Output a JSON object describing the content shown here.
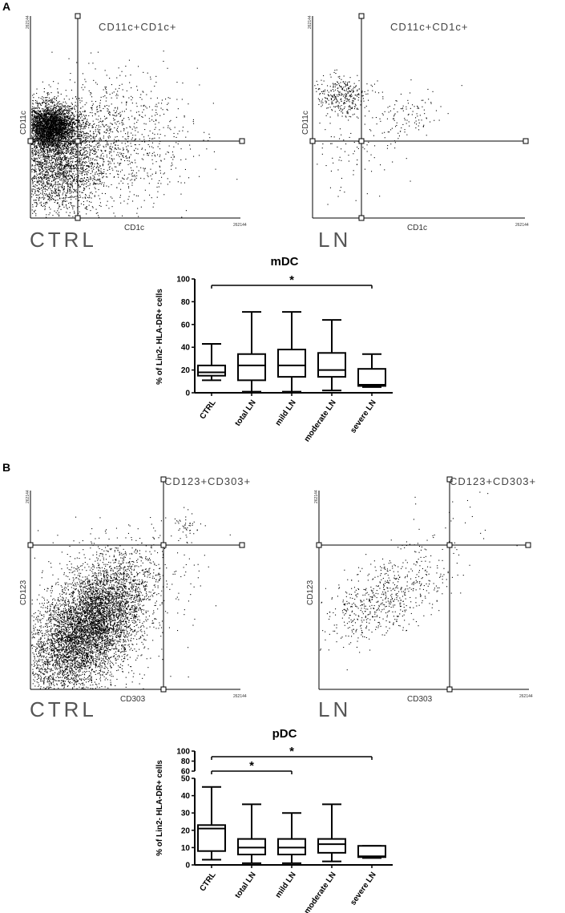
{
  "panels": {
    "A": {
      "letter": "A",
      "ctrl_plot": {
        "group_label": "CTRL",
        "gate_label": "CD11c+CD1c+",
        "y_axis": "CD11c",
        "x_axis": "CD1c",
        "max_tick": "262144"
      },
      "ln_plot": {
        "group_label": "LN",
        "gate_label": "CD11c+CD1c+",
        "y_axis": "CD11c",
        "x_axis": "CD1c",
        "max_tick": "262144"
      }
    },
    "B": {
      "letter": "B",
      "ctrl_plot": {
        "group_label": "CTRL",
        "gate_label": "CD123+CD303+",
        "y_axis": "CD123",
        "x_axis": "CD303",
        "max_tick": "262144"
      },
      "ln_plot": {
        "group_label": "LN",
        "gate_label": "CD123+CD303+",
        "y_axis": "CD123",
        "x_axis": "CD303",
        "max_tick": "262144"
      }
    }
  },
  "chart_data": [
    {
      "type": "box",
      "title": "mDC",
      "ylabel": "% of Lin2- HLA-DR+ cells",
      "categories": [
        "CTRL",
        "total LN",
        "mild LN",
        "moderate LN",
        "severe LN"
      ],
      "ylim": [
        0,
        100
      ],
      "yticks": [
        "0",
        "20",
        "40",
        "60",
        "80",
        "100"
      ],
      "boxes": [
        {
          "min": 11,
          "q1": 15,
          "median": 18,
          "q3": 24,
          "max": 43
        },
        {
          "min": 1,
          "q1": 11,
          "median": 24,
          "q3": 34,
          "max": 71
        },
        {
          "min": 1,
          "q1": 14,
          "median": 24,
          "q3": 38,
          "max": 71
        },
        {
          "min": 2,
          "q1": 14,
          "median": 20,
          "q3": 35,
          "max": 64
        },
        {
          "min": 5,
          "q1": 6,
          "median": 7,
          "q3": 21,
          "max": 34
        }
      ],
      "significance": [
        {
          "from": "CTRL",
          "to": "severe LN",
          "label": "*"
        }
      ]
    },
    {
      "type": "box",
      "title": "pDC",
      "ylabel": "% of Lin2- HLA-DR+ cells",
      "categories": [
        "CTRL",
        "total LN",
        "mild LN",
        "moderate LN",
        "severe LN"
      ],
      "ylim": [
        0,
        100
      ],
      "axis_break": [
        50,
        60
      ],
      "yticks_lower": [
        "0",
        "10",
        "20",
        "30",
        "40",
        "50"
      ],
      "yticks_upper": [
        "60",
        "80",
        "100"
      ],
      "boxes": [
        {
          "min": 3,
          "q1": 8,
          "median": 21,
          "q3": 23,
          "max": 45
        },
        {
          "min": 1,
          "q1": 6,
          "median": 10,
          "q3": 15,
          "max": 35
        },
        {
          "min": 1,
          "q1": 6,
          "median": 10,
          "q3": 15,
          "max": 30
        },
        {
          "min": 2,
          "q1": 7,
          "median": 12,
          "q3": 15,
          "max": 35
        },
        {
          "min": 4,
          "q1": 4.5,
          "median": 5,
          "q3": 11,
          "max": 11
        }
      ],
      "significance": [
        {
          "from": "CTRL",
          "to": "mild LN",
          "label": "*"
        },
        {
          "from": "CTRL",
          "to": "severe LN",
          "label": "*"
        }
      ]
    }
  ]
}
